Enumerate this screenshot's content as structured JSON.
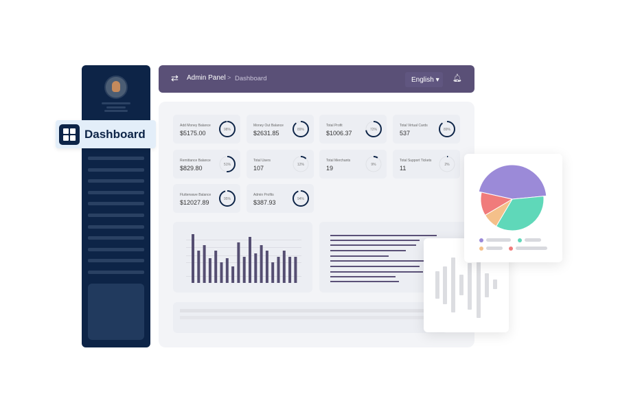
{
  "sidebar": {
    "active_item": "Dashboard"
  },
  "topbar": {
    "breadcrumb_root": "Admin Panel",
    "separator": ">",
    "breadcrumb_current": "Dashboard",
    "language": "English ▾",
    "menu_icon": "swap-arrows-icon",
    "notification_icon": "bell-icon"
  },
  "stats": [
    {
      "title": "Add Money Balance",
      "value": "$5175.00",
      "percent": 98
    },
    {
      "title": "Money Out Balance",
      "value": "$2631.85",
      "percent": 89
    },
    {
      "title": "Total Profit",
      "value": "$1006.37",
      "percent": 72
    },
    {
      "title": "Total Virtual Cards",
      "value": "537",
      "percent": 89
    },
    {
      "title": "Remittance Balance",
      "value": "$829.80",
      "percent": 51
    },
    {
      "title": "Total Users",
      "value": "107",
      "percent": 12
    },
    {
      "title": "Total Merchants",
      "value": "19",
      "percent": 9
    },
    {
      "title": "Total Support Tickets",
      "value": "11",
      "percent": 2
    },
    {
      "title": "Flutterwave Balance",
      "value": "$12027.89",
      "percent": 95
    },
    {
      "title": "Admin Profits",
      "value": "$387.93",
      "percent": 94
    }
  ],
  "chart_data": {
    "type": "bar",
    "values": [
      71,
      47,
      55,
      36,
      47,
      30,
      36,
      24,
      59,
      38,
      67,
      43,
      55,
      47,
      30,
      38,
      47,
      38,
      38
    ],
    "color": "#554e72"
  },
  "pie": {
    "slices": [
      {
        "value": 45,
        "color": "#9b8ad8"
      },
      {
        "value": 35,
        "color": "#5fd8b9"
      },
      {
        "value": 8,
        "color": "#f4c08a"
      },
      {
        "value": 12,
        "color": "#f07b7b"
      }
    ]
  },
  "colors": {
    "sidebar": "#0d2447",
    "topbar": "#5a5077",
    "accent": "#0d2447"
  }
}
